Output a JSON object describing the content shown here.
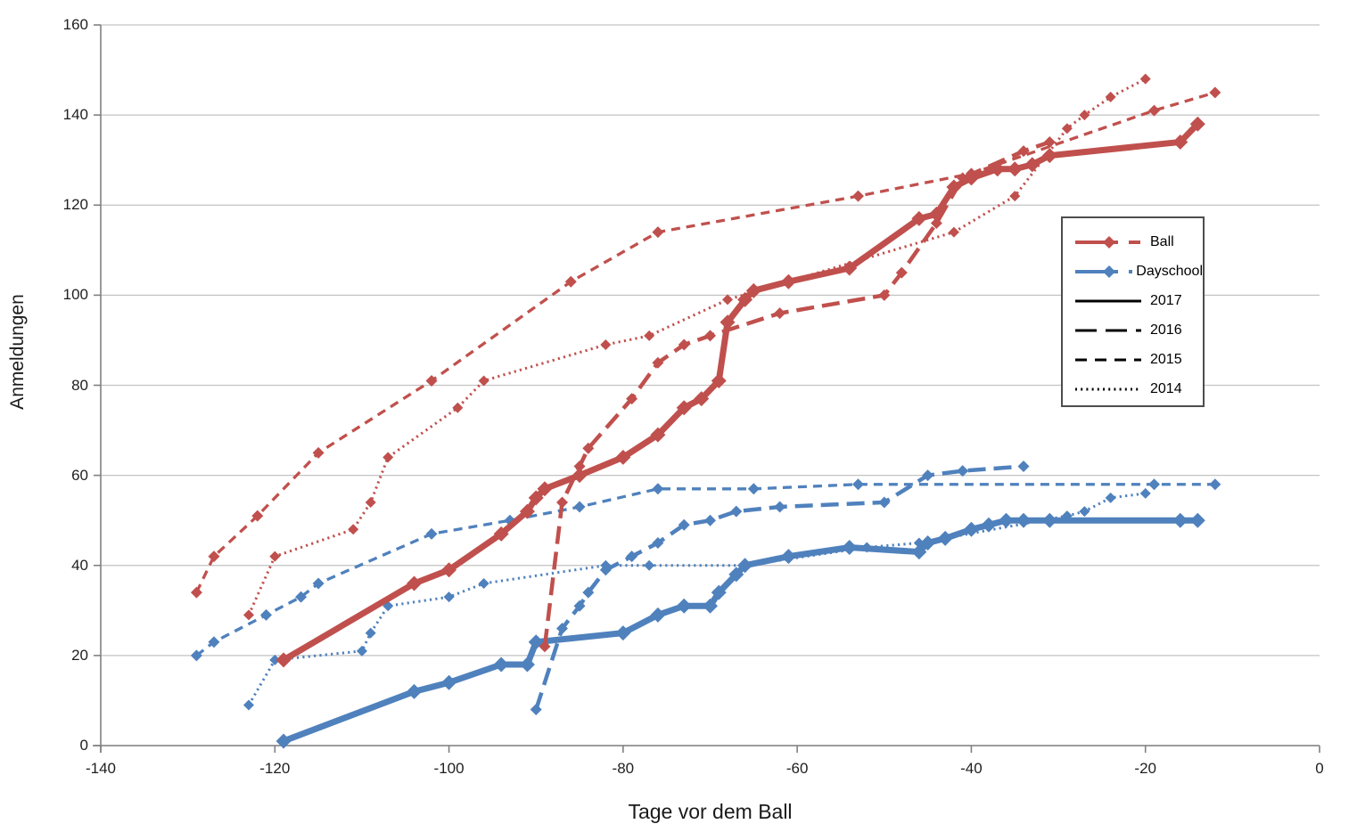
{
  "figure": {
    "xlabel": "Tage vor dem Ball",
    "ylabel": "Anmeldungen"
  },
  "legend": {
    "entries": [
      {
        "label": "Ball",
        "type": "series",
        "color": "#c0504d"
      },
      {
        "label": "Dayschool",
        "type": "series",
        "color": "#4f81bd"
      },
      {
        "label": "2017",
        "type": "style",
        "dash": "solid"
      },
      {
        "label": "2016",
        "type": "style",
        "dash": "longdash"
      },
      {
        "label": "2015",
        "type": "style",
        "dash": "dash"
      },
      {
        "label": "2014",
        "type": "style",
        "dash": "dot"
      }
    ]
  },
  "chart_data": {
    "type": "line",
    "title": "",
    "xlabel": "Tage vor dem Ball",
    "ylabel": "Anmeldungen",
    "xlim": [
      -140,
      0
    ],
    "ylim": [
      0,
      160
    ],
    "x_ticks": [
      -140,
      -120,
      -100,
      -80,
      -60,
      -40,
      -20,
      0
    ],
    "y_ticks": [
      0,
      20,
      40,
      60,
      80,
      100,
      120,
      140,
      160
    ],
    "grid": "horizontal-only",
    "legend_position": "right-middle",
    "colors": {
      "ball": "#c0504d",
      "dayschool": "#4f81bd",
      "gridline": "#c3c3c3",
      "axis": "#808080"
    },
    "series": [
      {
        "name": "Dayschool 2015",
        "group": "Dayschool",
        "year": 2015,
        "style": "dash",
        "color": "#4f81bd",
        "points": [
          [
            -129,
            20
          ],
          [
            -127,
            23
          ],
          [
            -121,
            29
          ],
          [
            -117,
            33
          ],
          [
            -115,
            36
          ],
          [
            -102,
            47
          ],
          [
            -93,
            50
          ],
          [
            -85,
            53
          ],
          [
            -76,
            57
          ],
          [
            -65,
            57
          ],
          [
            -53,
            58
          ],
          [
            -19,
            58
          ],
          [
            -12,
            58
          ]
        ]
      },
      {
        "name": "Dayschool 2014",
        "group": "Dayschool",
        "year": 2014,
        "style": "dot",
        "color": "#4f81bd",
        "points": [
          [
            -123,
            9
          ],
          [
            -120,
            19
          ],
          [
            -110,
            21
          ],
          [
            -109,
            25
          ],
          [
            -107,
            31
          ],
          [
            -100,
            33
          ],
          [
            -96,
            36
          ],
          [
            -82,
            40
          ],
          [
            -77,
            40
          ],
          [
            -66,
            40
          ],
          [
            -52,
            44
          ],
          [
            -46,
            45
          ],
          [
            -29,
            51
          ],
          [
            -27,
            52
          ],
          [
            -24,
            55
          ],
          [
            -20,
            56
          ]
        ]
      },
      {
        "name": "Dayschool 2016",
        "group": "Dayschool",
        "year": 2016,
        "style": "longdash",
        "color": "#4f81bd",
        "points": [
          [
            -90,
            8
          ],
          [
            -87,
            26
          ],
          [
            -85,
            31
          ],
          [
            -84,
            34
          ],
          [
            -82,
            39
          ],
          [
            -79,
            42
          ],
          [
            -76,
            45
          ],
          [
            -73,
            49
          ],
          [
            -70,
            50
          ],
          [
            -67,
            52
          ],
          [
            -62,
            53
          ],
          [
            -50,
            54
          ],
          [
            -45,
            60
          ],
          [
            -41,
            61
          ],
          [
            -34,
            62
          ]
        ]
      },
      {
        "name": "Dayschool 2017",
        "group": "Dayschool",
        "year": 2017,
        "style": "solid",
        "color": "#4f81bd",
        "points": [
          [
            -119,
            1
          ],
          [
            -104,
            12
          ],
          [
            -100,
            14
          ],
          [
            -94,
            18
          ],
          [
            -91,
            18
          ],
          [
            -90,
            23
          ],
          [
            -80,
            25
          ],
          [
            -76,
            29
          ],
          [
            -73,
            31
          ],
          [
            -70,
            31
          ],
          [
            -69,
            34
          ],
          [
            -67,
            38
          ],
          [
            -66,
            40
          ],
          [
            -61,
            42
          ],
          [
            -54,
            44
          ],
          [
            -46,
            43
          ],
          [
            -45,
            45
          ],
          [
            -43,
            46
          ],
          [
            -40,
            48
          ],
          [
            -38,
            49
          ],
          [
            -36,
            50
          ],
          [
            -34,
            50
          ],
          [
            -31,
            50
          ],
          [
            -16,
            50
          ],
          [
            -14,
            50
          ]
        ]
      },
      {
        "name": "Ball 2015",
        "group": "Ball",
        "year": 2015,
        "style": "dash",
        "color": "#c0504d",
        "points": [
          [
            -129,
            34
          ],
          [
            -127,
            42
          ],
          [
            -122,
            51
          ],
          [
            -115,
            65
          ],
          [
            -102,
            81
          ],
          [
            -86,
            103
          ],
          [
            -76,
            114
          ],
          [
            -53,
            122
          ],
          [
            -40,
            127
          ],
          [
            -19,
            141
          ],
          [
            -12,
            145
          ]
        ]
      },
      {
        "name": "Ball 2014",
        "group": "Ball",
        "year": 2014,
        "style": "dot",
        "color": "#c0504d",
        "points": [
          [
            -123,
            29
          ],
          [
            -120,
            42
          ],
          [
            -111,
            48
          ],
          [
            -109,
            54
          ],
          [
            -107,
            64
          ],
          [
            -99,
            75
          ],
          [
            -96,
            81
          ],
          [
            -82,
            89
          ],
          [
            -77,
            91
          ],
          [
            -68,
            99
          ],
          [
            -42,
            114
          ],
          [
            -35,
            122
          ],
          [
            -29,
            137
          ],
          [
            -27,
            140
          ],
          [
            -24,
            144
          ],
          [
            -20,
            148
          ]
        ]
      },
      {
        "name": "Ball 2016",
        "group": "Ball",
        "year": 2016,
        "style": "longdash",
        "color": "#c0504d",
        "points": [
          [
            -89,
            22
          ],
          [
            -87,
            54
          ],
          [
            -85,
            62
          ],
          [
            -84,
            66
          ],
          [
            -79,
            77
          ],
          [
            -76,
            85
          ],
          [
            -73,
            89
          ],
          [
            -70,
            91
          ],
          [
            -62,
            96
          ],
          [
            -50,
            100
          ],
          [
            -48,
            105
          ],
          [
            -44,
            116
          ],
          [
            -41,
            126
          ],
          [
            -34,
            132
          ],
          [
            -31,
            134
          ]
        ]
      },
      {
        "name": "Ball 2017",
        "group": "Ball",
        "year": 2017,
        "style": "solid",
        "color": "#c0504d",
        "points": [
          [
            -119,
            19
          ],
          [
            -104,
            36
          ],
          [
            -100,
            39
          ],
          [
            -94,
            47
          ],
          [
            -91,
            52
          ],
          [
            -90,
            55
          ],
          [
            -89,
            57
          ],
          [
            -85,
            60
          ],
          [
            -80,
            64
          ],
          [
            -76,
            69
          ],
          [
            -73,
            75
          ],
          [
            -71,
            77
          ],
          [
            -69,
            81
          ],
          [
            -68,
            94
          ],
          [
            -66,
            99
          ],
          [
            -65,
            101
          ],
          [
            -61,
            103
          ],
          [
            -54,
            106
          ],
          [
            -46,
            117
          ],
          [
            -44,
            118
          ],
          [
            -42,
            124
          ],
          [
            -40,
            126
          ],
          [
            -37,
            128
          ],
          [
            -35,
            128
          ],
          [
            -33,
            129
          ],
          [
            -31,
            131
          ],
          [
            -16,
            134
          ],
          [
            -14,
            138
          ]
        ]
      }
    ]
  }
}
